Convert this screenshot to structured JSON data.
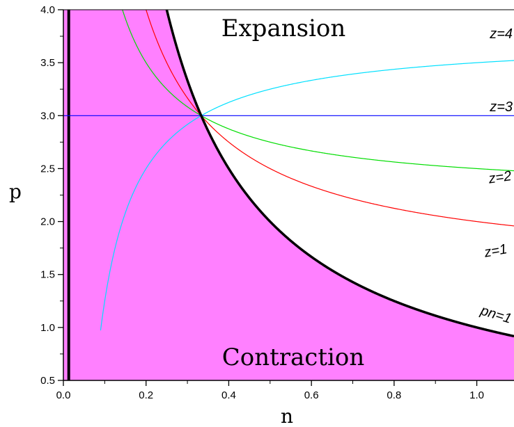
{
  "chart_data": {
    "type": "line",
    "xlabel": "n",
    "ylabel": "p",
    "xlim": [
      0.0,
      1.09
    ],
    "ylim": [
      0.5,
      4.0
    ],
    "x_ticks": [
      "0.0",
      "0.2",
      "0.4",
      "0.6",
      "0.8",
      "1.0"
    ],
    "y_ticks": [
      "0.5",
      "1.0",
      "1.5",
      "2.0",
      "2.5",
      "3.0",
      "3.5",
      "4.0"
    ],
    "regions": [
      {
        "name": "expansion",
        "label": "Expansion"
      },
      {
        "name": "contraction",
        "label": "Contraction",
        "color": "#ff80ff"
      }
    ],
    "vertical_line": {
      "x": 0.013,
      "color": "#000000"
    },
    "series": [
      {
        "name": "pn=1",
        "color": "#000000",
        "formula": "p = 1/n"
      },
      {
        "name": "z=1",
        "color": "#ff0000",
        "formula": "p = 3 - 1.5*(3n - 1)/(3n)"
      },
      {
        "name": "z=2",
        "color": "#00dd00",
        "formula": "p = 3 - 0.75*(3n - 1)/(3n)"
      },
      {
        "name": "z=3",
        "color": "#0000ff",
        "formula": "p = 3"
      },
      {
        "name": "z=4",
        "color": "#00e0ff",
        "formula": "p = 3 + 0.75*(3n - 1)/(3n)"
      }
    ],
    "intersection": {
      "x": 0.3333,
      "y": 3.0
    }
  }
}
